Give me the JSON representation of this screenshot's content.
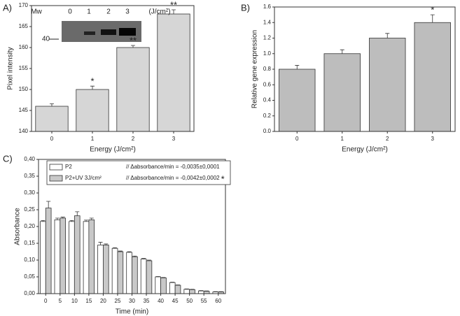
{
  "chart_data": [
    {
      "type": "bar",
      "panel_label": "A)",
      "xlabel": "Energy (J/cm²)",
      "ylabel": "Pixel intensity",
      "categories": [
        "0",
        "1",
        "2",
        "3"
      ],
      "values": [
        146,
        150,
        160,
        168
      ],
      "errors": [
        0.6,
        0.8,
        0.5,
        1
      ],
      "color": "#d6d6d6",
      "ylim": [
        140,
        170
      ],
      "yticks": [
        140,
        145,
        150,
        155,
        160,
        165,
        170
      ],
      "annotations": [
        {
          "x": "1",
          "text": "*"
        },
        {
          "x": "2",
          "text": "**"
        },
        {
          "x": "3",
          "text": "**"
        }
      ],
      "inset": {
        "labels": [
          "Mw",
          "0",
          "1",
          "2",
          "3",
          "(J/cm²)"
        ],
        "marker": "40"
      }
    },
    {
      "type": "bar",
      "panel_label": "B)",
      "xlabel": "Energy (J/cm²)",
      "ylabel": "Relative gene expression",
      "categories": [
        "0",
        "1",
        "2",
        "3"
      ],
      "values": [
        0.8,
        1.0,
        1.2,
        1.4
      ],
      "errors": [
        0.05,
        0.05,
        0.06,
        0.1
      ],
      "color": "#bdbdbd",
      "ylim": [
        0,
        1.6
      ],
      "yticks": [
        {
          "value": 0,
          "label": "0.0"
        },
        0.2,
        0.4,
        0.6,
        0.8,
        {
          "value": 1,
          "label": "1.0"
        },
        1.2,
        1.4,
        1.6
      ],
      "annotations": [
        {
          "x": "3",
          "text": "*"
        }
      ]
    },
    {
      "type": "bar",
      "panel_label": "C)",
      "xlabel": "Time (min)",
      "ylabel": "Absorbance",
      "categories": [
        "0",
        "5",
        "10",
        "15",
        "20",
        "25",
        "30",
        "35",
        "40",
        "45",
        "50",
        "55",
        "60"
      ],
      "series": [
        {
          "name": "P2",
          "color": "#ffffff",
          "note": "// Δabsorbance/min = -0,0035±0,0001",
          "values": [
            0.215,
            0.22,
            0.215,
            0.215,
            0.145,
            0.135,
            0.123,
            0.103,
            0.05,
            0.033,
            0.013,
            0.008,
            0.005
          ],
          "errors": [
            0.003,
            0.005,
            0.003,
            0.004,
            0.008,
            0.002,
            0.002,
            0.002,
            0.001,
            0.001,
            0.001,
            0.001,
            0.001
          ]
        },
        {
          "name": "P2+UV 3J/cm²",
          "color": "#c8c8c8",
          "note": "// Δabsorbance/min = -0,0042±0,0002",
          "mark": "*",
          "values": [
            0.255,
            0.225,
            0.232,
            0.22,
            0.145,
            0.125,
            0.11,
            0.098,
            0.047,
            0.025,
            0.012,
            0.007,
            0.005
          ],
          "errors": [
            0.02,
            0.003,
            0.012,
            0.005,
            0.003,
            0.002,
            0.002,
            0.002,
            0.001,
            0.001,
            0.001,
            0.001,
            0.001
          ]
        }
      ],
      "ylim": [
        0,
        0.4
      ],
      "yticks": [
        {
          "value": 0,
          "label": "0,00"
        },
        {
          "value": 0.05,
          "label": "0,05"
        },
        {
          "value": 0.1,
          "label": "0,10"
        },
        {
          "value": 0.15,
          "label": "0,15"
        },
        {
          "value": 0.2,
          "label": "0,20"
        },
        {
          "value": 0.25,
          "label": "0,25"
        },
        {
          "value": 0.3,
          "label": "0,30"
        },
        {
          "value": 0.35,
          "label": "0,35"
        },
        {
          "value": 0.4,
          "label": "0,40"
        }
      ]
    }
  ]
}
